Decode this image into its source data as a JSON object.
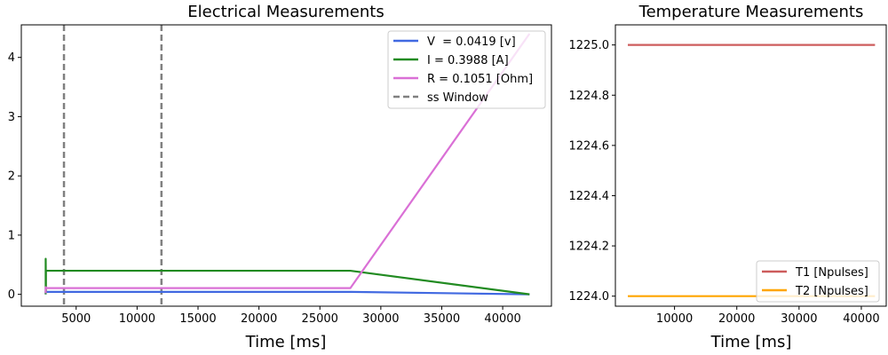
{
  "chart_data": [
    {
      "type": "line",
      "title": "Electrical Measurements",
      "xlabel": "Time [ms]",
      "ylabel": "",
      "xlim": [
        500,
        44000
      ],
      "ylim": [
        -0.2,
        4.55
      ],
      "xticks": [
        5000,
        10000,
        15000,
        20000,
        25000,
        30000,
        35000,
        40000
      ],
      "yticks": [
        0,
        1,
        2,
        3,
        4
      ],
      "xtick_labels": [
        "5000",
        "10000",
        "15000",
        "20000",
        "25000",
        "30000",
        "35000",
        "40000"
      ],
      "ytick_labels": [
        "0",
        "1",
        "2",
        "3",
        "4"
      ],
      "legend_position": "top-right",
      "series": [
        {
          "name": "V  = 0.0419 [v]",
          "color": "#4169e1",
          "x": [
            2500,
            2500,
            2550,
            27500,
            42200
          ],
          "y": [
            0.0,
            0.05,
            0.0419,
            0.0419,
            0.0
          ]
        },
        {
          "name": "I = 0.3988 [A]",
          "color": "#228b22",
          "x": [
            2500,
            2500,
            2520,
            2520,
            2600,
            27500,
            42200
          ],
          "y": [
            0.0,
            0.6,
            0.05,
            0.4,
            0.3988,
            0.3988,
            0.0
          ]
        },
        {
          "name": "R = 0.1051 [Ohm]",
          "color": "#da70d6",
          "x": [
            2500,
            2500,
            2600,
            27500,
            42200
          ],
          "y": [
            0.02,
            0.12,
            0.1051,
            0.1051,
            4.4
          ]
        }
      ],
      "vlines": {
        "name": "ss Window",
        "color": "#808080",
        "x": [
          4000,
          12000
        ]
      }
    },
    {
      "type": "line",
      "title": "Temperature Measurements",
      "xlabel": "Time [ms]",
      "ylabel": "",
      "xlim": [
        500,
        44000
      ],
      "ylim": [
        1223.96,
        1225.08
      ],
      "xticks": [
        10000,
        20000,
        30000,
        40000
      ],
      "yticks": [
        1224.0,
        1224.2,
        1224.4,
        1224.6,
        1224.8,
        1225.0
      ],
      "xtick_labels": [
        "10000",
        "20000",
        "30000",
        "40000"
      ],
      "ytick_labels": [
        "1224.0",
        "1224.2",
        "1224.4",
        "1224.6",
        "1224.8",
        "1225.0"
      ],
      "legend_position": "bottom-right",
      "series": [
        {
          "name": "T1 [Npulses]",
          "color": "#cd5c5c",
          "x": [
            2500,
            42200
          ],
          "y": [
            1225.0,
            1225.0
          ]
        },
        {
          "name": "T2 [Npulses]",
          "color": "#ffa500",
          "x": [
            2500,
            42200
          ],
          "y": [
            1224.0,
            1224.0
          ]
        }
      ]
    }
  ]
}
